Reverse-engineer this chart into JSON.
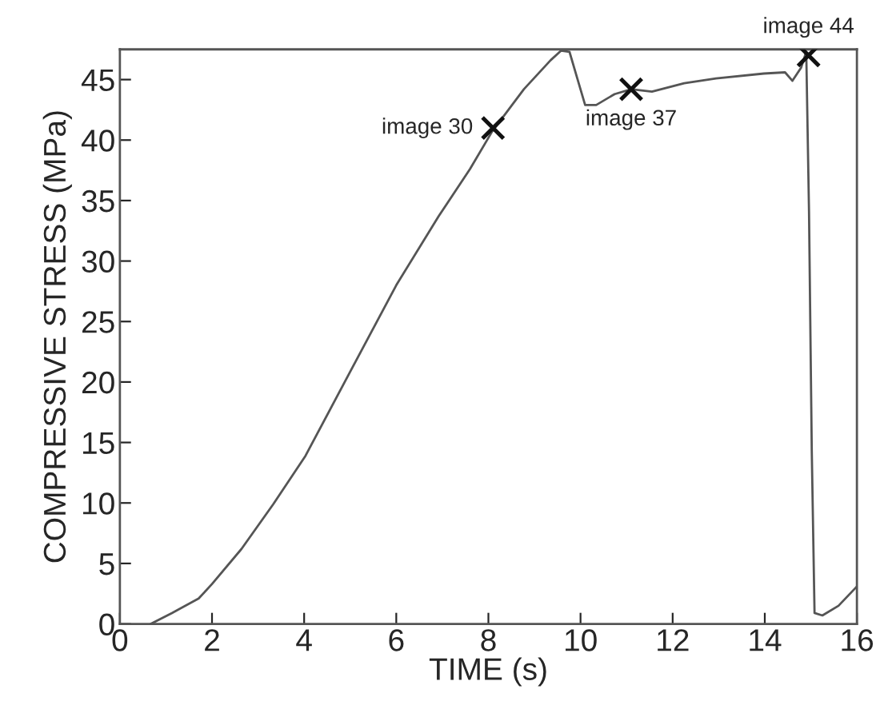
{
  "chart_data": {
    "type": "line",
    "xlabel": "TIME (s)",
    "ylabel": "COMPRESSIVE STRESS (MPa)",
    "xlim": [
      0,
      16
    ],
    "ylim": [
      0,
      47.5
    ],
    "xticks": [
      0,
      2,
      4,
      6,
      8,
      10,
      12,
      14,
      16
    ],
    "yticks": [
      0,
      5,
      10,
      15,
      20,
      25,
      30,
      35,
      40,
      45
    ],
    "grid": false,
    "legend": false,
    "series": [
      {
        "color": "#555555",
        "marker": "none",
        "x": [
          0.67,
          1.13,
          1.71,
          2.0,
          2.64,
          3.33,
          4.03,
          4.95,
          6.0,
          6.92,
          7.6,
          8.08,
          8.77,
          9.35,
          9.58,
          9.76,
          9.93,
          10.1,
          10.34,
          10.74,
          11.1,
          11.55,
          12.25,
          12.94,
          13.98,
          14.44,
          14.6,
          14.79,
          14.9,
          14.96,
          15.02,
          15.08,
          15.25,
          15.6,
          16.0
        ],
        "values": [
          0,
          0.9,
          2.1,
          3.3,
          6.2,
          9.9,
          13.9,
          20.5,
          28,
          33.7,
          37.6,
          40.7,
          44.2,
          46.6,
          47.4,
          47.3,
          45.1,
          42.9,
          42.9,
          43.8,
          44.2,
          44.0,
          44.7,
          45.1,
          45.5,
          45.6,
          44.9,
          46.0,
          47.3,
          34.1,
          14.3,
          0.9,
          0.7,
          1.5,
          3.1
        ]
      },
      {
        "type": "scatter",
        "color": "#111111",
        "marker": "cross",
        "x": [
          8.1,
          11.1,
          14.95
        ],
        "values": [
          41,
          44.2,
          47.0
        ]
      }
    ],
    "annotations": [
      {
        "text": "image 30",
        "x": 8.1,
        "y": 41
      },
      {
        "text": "image 37",
        "x": 11.1,
        "y": 44.2
      },
      {
        "text": "image 44",
        "x": 14.95,
        "y": 47.0
      }
    ]
  }
}
